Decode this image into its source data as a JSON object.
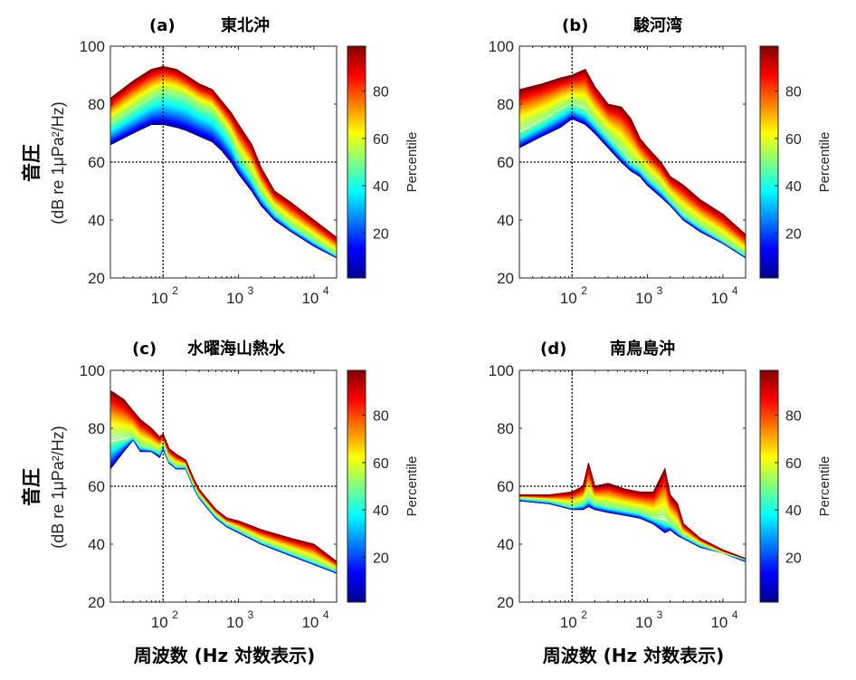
{
  "chart_data": [
    {
      "type": "line",
      "panel_label": "(a)",
      "title": "東北沖",
      "xlabel": "",
      "ylabel_main": "音圧",
      "ylabel_sub": "(dB re 1μPa²/Hz)",
      "x_scale": "log",
      "xlim": [
        20,
        20000
      ],
      "ylim": [
        20,
        100
      ],
      "x_ticks": [
        {
          "value": 100,
          "label": "10",
          "exp": "2"
        },
        {
          "value": 1000,
          "label": "10",
          "exp": "3"
        },
        {
          "value": 10000,
          "label": "10",
          "exp": "4"
        }
      ],
      "y_ticks": [
        "20",
        "40",
        "60",
        "80",
        "100"
      ],
      "reference_lines": {
        "x": 100,
        "y": 60
      },
      "colorbar": {
        "label": "Percentile",
        "ticks": [
          "20",
          "40",
          "60",
          "80"
        ],
        "range": [
          1,
          99
        ]
      },
      "x": [
        20,
        40,
        70,
        100,
        150,
        200,
        300,
        450,
        600,
        800,
        1000,
        1500,
        2000,
        3000,
        5000,
        10000,
        20000
      ],
      "series": [
        {
          "percentile": 1,
          "values": [
            66,
            70,
            73,
            73,
            72,
            71,
            69,
            67,
            64,
            60,
            56,
            50,
            45,
            40,
            36,
            31,
            27
          ]
        },
        {
          "percentile": 50,
          "values": [
            73,
            78,
            82,
            84,
            83,
            82,
            79,
            77,
            73,
            68,
            62,
            55,
            49,
            43,
            38,
            33,
            28
          ]
        },
        {
          "percentile": 99,
          "values": [
            82,
            88,
            92,
            93,
            92,
            90,
            87,
            85,
            81,
            77,
            73,
            66,
            58,
            50,
            46,
            40,
            34
          ]
        }
      ]
    },
    {
      "type": "line",
      "panel_label": "(b)",
      "title": "駿河湾",
      "xlabel": "",
      "ylabel_main": "",
      "ylabel_sub": "",
      "x_scale": "log",
      "xlim": [
        20,
        20000
      ],
      "ylim": [
        20,
        100
      ],
      "x_ticks": [
        {
          "value": 100,
          "label": "10",
          "exp": "2"
        },
        {
          "value": 1000,
          "label": "10",
          "exp": "3"
        },
        {
          "value": 10000,
          "label": "10",
          "exp": "4"
        }
      ],
      "y_ticks": [
        "20",
        "40",
        "60",
        "80",
        "100"
      ],
      "reference_lines": {
        "x": 100,
        "y": 60
      },
      "colorbar": {
        "label": "Percentile",
        "ticks": [
          "20",
          "40",
          "60",
          "80"
        ],
        "range": [
          1,
          99
        ]
      },
      "x": [
        20,
        40,
        70,
        100,
        150,
        200,
        300,
        450,
        600,
        800,
        1000,
        1500,
        2000,
        3000,
        5000,
        10000,
        20000
      ],
      "series": [
        {
          "percentile": 1,
          "values": [
            65,
            69,
            72,
            75,
            73,
            70,
            65,
            60,
            57,
            55,
            52,
            48,
            45,
            40,
            36,
            32,
            27
          ]
        },
        {
          "percentile": 50,
          "values": [
            70,
            74,
            78,
            80,
            78,
            74,
            69,
            64,
            60,
            58,
            55,
            51,
            47,
            42,
            38,
            33,
            28
          ]
        },
        {
          "percentile": 99,
          "values": [
            85,
            87,
            89,
            90,
            92,
            86,
            80,
            79,
            75,
            68,
            65,
            60,
            55,
            52,
            47,
            42,
            35
          ]
        }
      ]
    },
    {
      "type": "line",
      "panel_label": "(c)",
      "title": "水曜海山熱水",
      "xlabel": "周波数 (Hz 対数表示)",
      "ylabel_main": "音圧",
      "ylabel_sub": "(dB re 1μPa²/Hz)",
      "x_scale": "log",
      "xlim": [
        20,
        20000
      ],
      "ylim": [
        20,
        100
      ],
      "x_ticks": [
        {
          "value": 100,
          "label": "10",
          "exp": "2"
        },
        {
          "value": 1000,
          "label": "10",
          "exp": "3"
        },
        {
          "value": 10000,
          "label": "10",
          "exp": "4"
        }
      ],
      "y_ticks": [
        "20",
        "40",
        "60",
        "80",
        "100"
      ],
      "reference_lines": {
        "x": 100,
        "y": 60
      },
      "colorbar": {
        "label": "Percentile",
        "ticks": [
          "20",
          "40",
          "60",
          "80"
        ],
        "range": [
          1,
          99
        ]
      },
      "x": [
        20,
        30,
        40,
        50,
        70,
        90,
        100,
        120,
        150,
        200,
        250,
        300,
        400,
        500,
        700,
        1000,
        2000,
        5000,
        10000,
        20000
      ],
      "series": [
        {
          "percentile": 1,
          "values": [
            66,
            72,
            76,
            72,
            72,
            70,
            73,
            68,
            66,
            66,
            60,
            56,
            52,
            49,
            46,
            44,
            40,
            36,
            33,
            30
          ]
        },
        {
          "percentile": 50,
          "values": [
            75,
            76,
            77,
            74,
            73,
            72,
            75,
            69,
            67,
            67,
            61,
            57,
            53,
            50,
            47,
            45,
            41,
            37,
            34,
            31
          ]
        },
        {
          "percentile": 99,
          "values": [
            93,
            90,
            86,
            83,
            80,
            77,
            78,
            73,
            71,
            69,
            63,
            59,
            55,
            52,
            49,
            48,
            45,
            42,
            40,
            34
          ]
        }
      ]
    },
    {
      "type": "line",
      "panel_label": "(d)",
      "title": "南鳥島沖",
      "xlabel": "周波数 (Hz 対数表示)",
      "ylabel_main": "",
      "ylabel_sub": "",
      "x_scale": "log",
      "xlim": [
        20,
        20000
      ],
      "ylim": [
        20,
        100
      ],
      "x_ticks": [
        {
          "value": 100,
          "label": "10",
          "exp": "2"
        },
        {
          "value": 1000,
          "label": "10",
          "exp": "3"
        },
        {
          "value": 10000,
          "label": "10",
          "exp": "4"
        }
      ],
      "y_ticks": [
        "20",
        "40",
        "60",
        "80",
        "100"
      ],
      "reference_lines": {
        "x": 100,
        "y": 60
      },
      "colorbar": {
        "label": "Percentile",
        "ticks": [
          "20",
          "40",
          "60",
          "80"
        ],
        "range": [
          1,
          99
        ]
      },
      "x": [
        20,
        50,
        100,
        140,
        165,
        200,
        300,
        500,
        800,
        1200,
        1700,
        2000,
        2500,
        3000,
        5000,
        10000,
        20000
      ],
      "series": [
        {
          "percentile": 1,
          "values": [
            55,
            54,
            52,
            52,
            53,
            52,
            51,
            50,
            49,
            47,
            44,
            45,
            43,
            42,
            39,
            37,
            34
          ]
        },
        {
          "percentile": 50,
          "values": [
            56,
            55,
            53,
            54,
            56,
            54,
            53,
            52,
            51,
            49,
            48,
            47,
            45,
            43,
            40,
            37,
            35
          ]
        },
        {
          "percentile": 99,
          "values": [
            57,
            57,
            58,
            60,
            68,
            60,
            61,
            59,
            58,
            58,
            66,
            57,
            54,
            47,
            42,
            38,
            35
          ]
        }
      ]
    }
  ]
}
